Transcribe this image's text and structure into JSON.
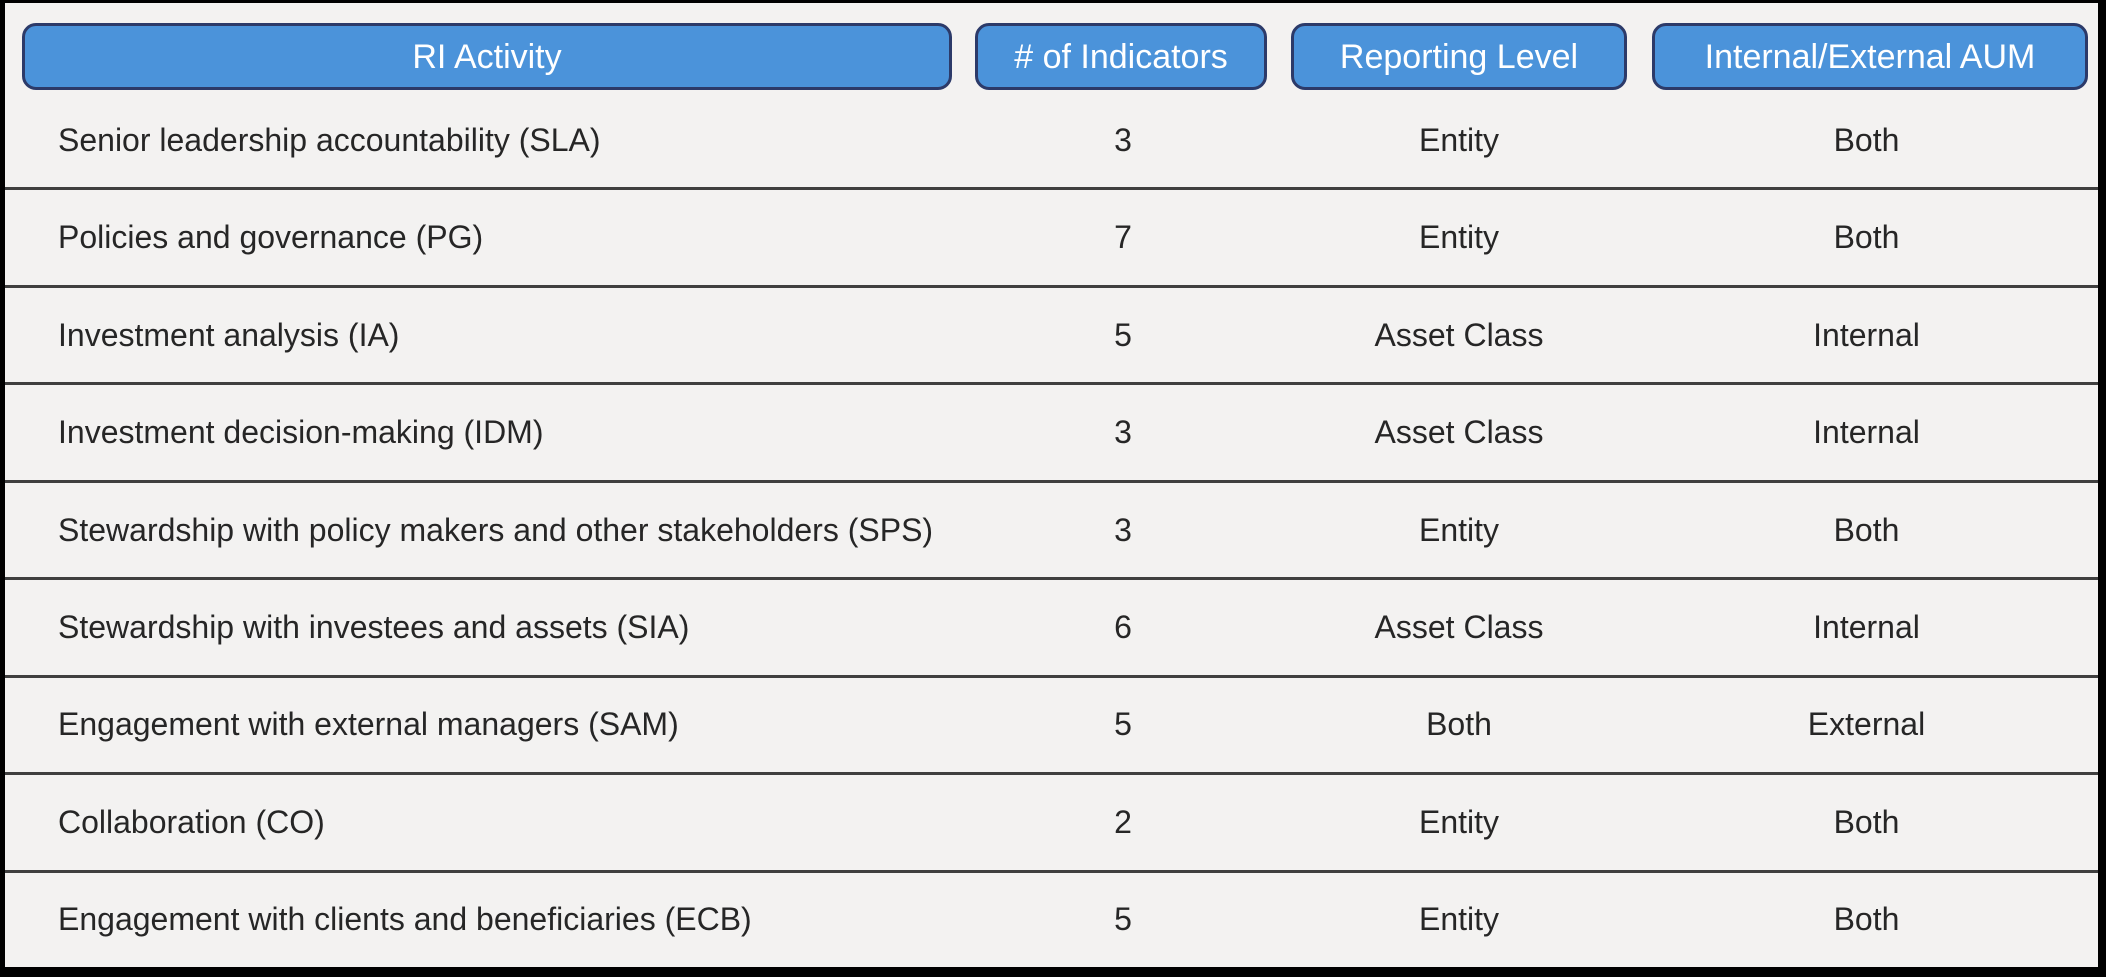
{
  "colors": {
    "header_fill": "#4b93da",
    "header_border": "#2c3a69",
    "header_text": "#ffffff",
    "background": "#f3f2f1",
    "row_divider": "#3f3f3f",
    "body_text": "#262626",
    "frame_border": "#000000"
  },
  "table": {
    "columns": [
      {
        "id": "activity",
        "label": "RI Activity"
      },
      {
        "id": "indicators",
        "label": "# of Indicators"
      },
      {
        "id": "reporting_level",
        "label": "Reporting Level"
      },
      {
        "id": "aum",
        "label": "Internal/External AUM"
      }
    ],
    "rows": [
      {
        "activity": "Senior leadership accountability (SLA)",
        "indicators": "3",
        "reporting_level": "Entity",
        "aum": "Both"
      },
      {
        "activity": "Policies and governance (PG)",
        "indicators": "7",
        "reporting_level": "Entity",
        "aum": "Both"
      },
      {
        "activity": "Investment analysis (IA)",
        "indicators": "5",
        "reporting_level": "Asset Class",
        "aum": "Internal"
      },
      {
        "activity": "Investment decision-making (IDM)",
        "indicators": "3",
        "reporting_level": "Asset Class",
        "aum": "Internal"
      },
      {
        "activity": "Stewardship with policy makers and other stakeholders (SPS)",
        "indicators": "3",
        "reporting_level": "Entity",
        "aum": "Both"
      },
      {
        "activity": "Stewardship with investees and assets (SIA)",
        "indicators": "6",
        "reporting_level": "Asset Class",
        "aum": "Internal"
      },
      {
        "activity": "Engagement with external managers (SAM)",
        "indicators": "5",
        "reporting_level": "Both",
        "aum": "External"
      },
      {
        "activity": "Collaboration (CO)",
        "indicators": "2",
        "reporting_level": "Entity",
        "aum": "Both"
      },
      {
        "activity": "Engagement with clients and beneficiaries (ECB)",
        "indicators": "5",
        "reporting_level": "Entity",
        "aum": "Both"
      }
    ]
  }
}
